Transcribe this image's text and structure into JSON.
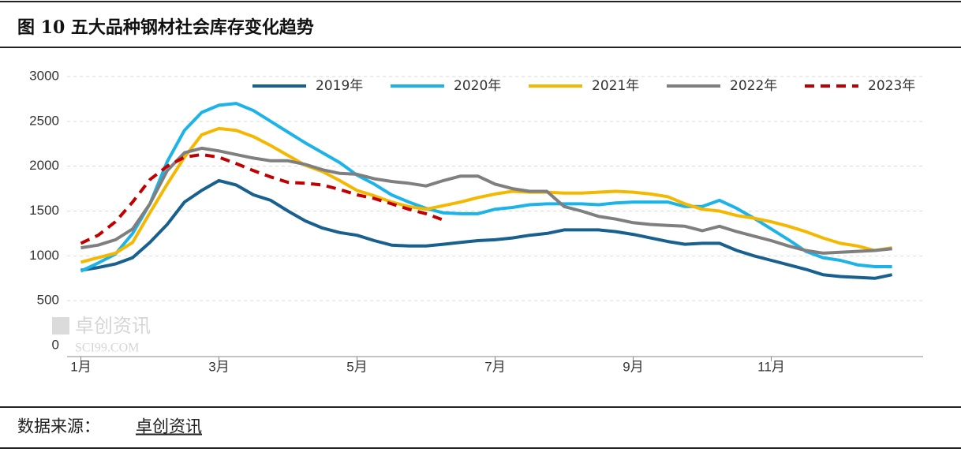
{
  "header": {
    "title": "图 10  五大品种钢材社会库存变化趋势"
  },
  "chart_data": {
    "type": "line",
    "x": [
      1,
      1.25,
      1.5,
      1.75,
      2,
      2.25,
      2.5,
      2.75,
      3,
      3.25,
      3.5,
      3.75,
      4,
      4.25,
      4.5,
      4.75,
      5,
      5.25,
      5.5,
      5.75,
      6,
      6.25,
      6.5,
      6.75,
      7,
      7.25,
      7.5,
      7.75,
      8,
      8.25,
      8.5,
      8.75,
      9,
      9.25,
      9.5,
      9.75,
      10,
      10.25,
      10.5,
      10.75,
      11,
      11.25,
      11.5,
      11.75,
      12,
      12.25,
      12.5,
      12.75
    ],
    "xlim": [
      0.8,
      13.2
    ],
    "xticks": [
      {
        "value": 1,
        "label": "1月"
      },
      {
        "value": 3,
        "label": "3月"
      },
      {
        "value": 5,
        "label": "5月"
      },
      {
        "value": 7,
        "label": "7月"
      },
      {
        "value": 9,
        "label": "9月"
      },
      {
        "value": 11,
        "label": "11月"
      }
    ],
    "ylim": [
      0,
      3000
    ],
    "yticks": [
      0,
      500,
      1000,
      1500,
      2000,
      2500,
      3000
    ],
    "grid": true,
    "legend": "top",
    "series": [
      {
        "name": "2019年",
        "color": "#17608f",
        "dash": false,
        "values": [
          840,
          870,
          910,
          980,
          1150,
          1350,
          1600,
          1730,
          1840,
          1790,
          1680,
          1620,
          1500,
          1390,
          1310,
          1260,
          1230,
          1170,
          1120,
          1110,
          1110,
          1130,
          1150,
          1170,
          1180,
          1200,
          1230,
          1250,
          1290,
          1290,
          1290,
          1270,
          1240,
          1200,
          1160,
          1130,
          1140,
          1140,
          1060,
          1000,
          950,
          900,
          850,
          790,
          770,
          760,
          750,
          790
        ]
      },
      {
        "name": "2020年",
        "color": "#1cb4e8",
        "dash": false,
        "values": [
          830,
          920,
          1020,
          1250,
          1580,
          2050,
          2400,
          2600,
          2680,
          2700,
          2620,
          2500,
          2380,
          2260,
          2150,
          2040,
          1900,
          1800,
          1680,
          1600,
          1530,
          1480,
          1470,
          1470,
          1520,
          1540,
          1570,
          1580,
          1580,
          1580,
          1570,
          1590,
          1600,
          1600,
          1600,
          1550,
          1550,
          1620,
          1530,
          1420,
          1300,
          1180,
          1050,
          980,
          950,
          900,
          880,
          880
        ]
      },
      {
        "name": "2021年",
        "color": "#f5b800",
        "dash": false,
        "values": [
          930,
          980,
          1030,
          1150,
          1480,
          1800,
          2100,
          2350,
          2420,
          2400,
          2330,
          2230,
          2120,
          2010,
          1940,
          1840,
          1730,
          1670,
          1600,
          1550,
          1520,
          1560,
          1600,
          1650,
          1690,
          1720,
          1710,
          1710,
          1700,
          1700,
          1710,
          1720,
          1710,
          1690,
          1660,
          1580,
          1520,
          1500,
          1450,
          1420,
          1380,
          1330,
          1270,
          1200,
          1140,
          1110,
          1060,
          1090
        ]
      },
      {
        "name": "2022年",
        "color": "#7f7f7f",
        "dash": false,
        "values": [
          1090,
          1120,
          1180,
          1300,
          1580,
          1950,
          2150,
          2200,
          2170,
          2130,
          2090,
          2060,
          2060,
          2020,
          1960,
          1920,
          1910,
          1860,
          1830,
          1810,
          1780,
          1840,
          1890,
          1890,
          1800,
          1750,
          1720,
          1720,
          1550,
          1500,
          1440,
          1410,
          1370,
          1350,
          1340,
          1330,
          1280,
          1330,
          1270,
          1220,
          1170,
          1110,
          1060,
          1030,
          1040,
          1050,
          1060,
          1080
        ]
      },
      {
        "name": "2023年",
        "color": "#c00000",
        "dash": true,
        "values": [
          1140,
          1230,
          1380,
          1600,
          1850,
          2000,
          2100,
          2130,
          2100,
          2030,
          1950,
          1880,
          1820,
          1810,
          1790,
          1740,
          1680,
          1640,
          1580,
          1520,
          1470,
          1400,
          null,
          null,
          null,
          null,
          null,
          null,
          null,
          null,
          null,
          null,
          null,
          null,
          null,
          null,
          null,
          null,
          null,
          null,
          null,
          null,
          null,
          null,
          null,
          null,
          null,
          null
        ]
      }
    ]
  },
  "watermark": {
    "name": "卓创资讯",
    "site": "SCI99.COM"
  },
  "footer": {
    "label": "数据来源：",
    "source": "卓创资讯"
  }
}
